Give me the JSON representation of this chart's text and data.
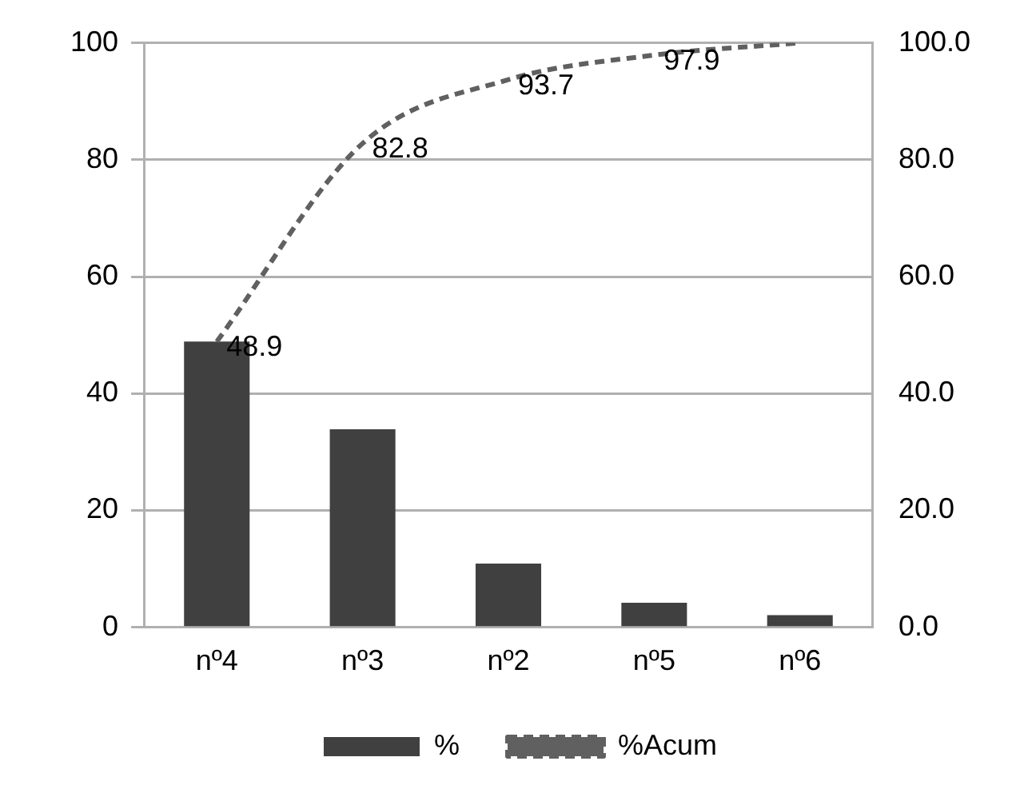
{
  "chart_data": {
    "type": "bar",
    "categories": [
      "nº4",
      "nº3",
      "nº2",
      "nº5",
      "nº6"
    ],
    "series": [
      {
        "name": "%",
        "color": "#404040",
        "values": [
          48.9,
          33.9,
          10.9,
          4.2,
          2.1
        ]
      },
      {
        "name": "%Acum",
        "type": "line",
        "axis": "y2",
        "color": "#606060",
        "line_style": "dashed",
        "marker": "none",
        "values": [
          48.9,
          82.8,
          93.7,
          97.9,
          100
        ],
        "value_labels": [
          "48.9",
          "82.8",
          "93.7",
          "97.9",
          null
        ]
      }
    ],
    "ylim": [
      0,
      100
    ],
    "yticks": [
      0,
      20,
      40,
      60,
      80,
      100
    ],
    "y2lim": [
      0,
      100
    ],
    "y2ticks": [
      {
        "value": 0,
        "label": "0.0"
      },
      {
        "value": 20,
        "label": "20.0"
      },
      {
        "value": 40,
        "label": "40.0"
      },
      {
        "value": 60,
        "label": "60.0"
      },
      {
        "value": 80,
        "label": "80.0"
      },
      {
        "value": 100,
        "label": "100.0"
      }
    ],
    "grid": "y",
    "legend": "bottom"
  }
}
